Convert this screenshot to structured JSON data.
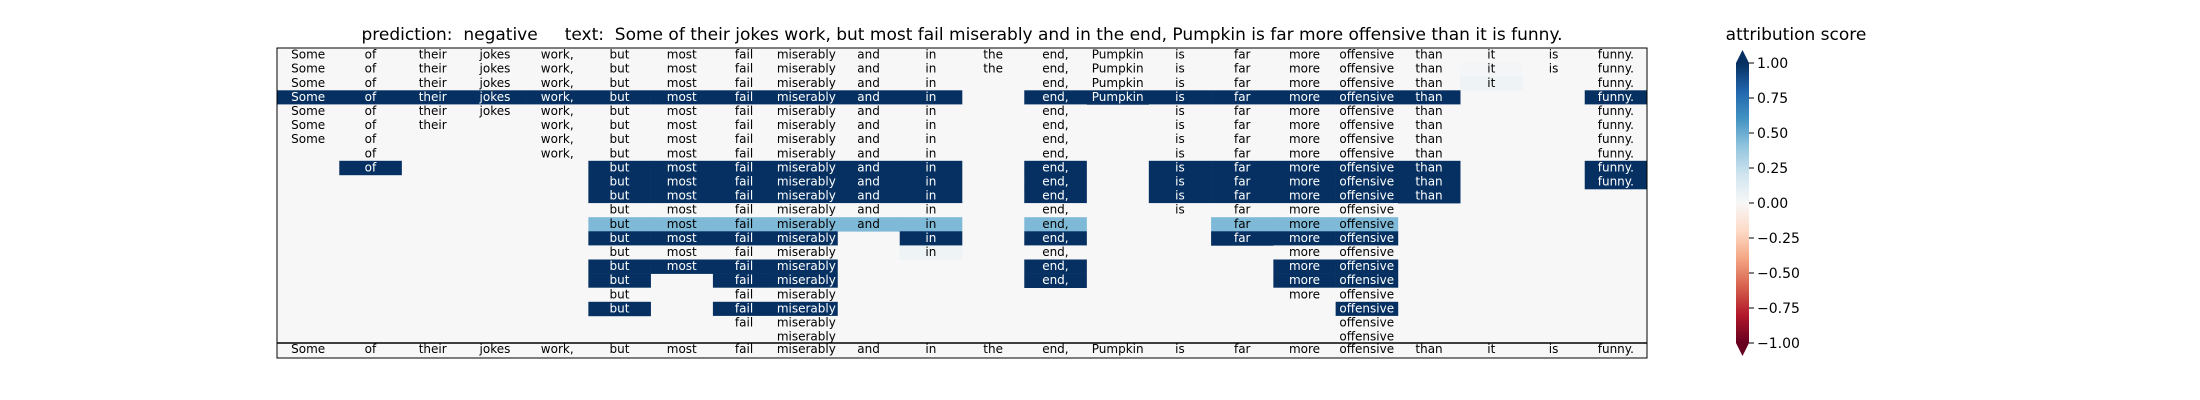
{
  "chart_data": {
    "type": "heatmap",
    "title": "prediction:  negative     text:  Some of their jokes work, but most fail miserably and in the end, Pumpkin is far more offensive than it is funny.",
    "tokens": [
      "Some",
      "of",
      "their",
      "jokes",
      "work,",
      "but",
      "most",
      "fail",
      "miserably",
      "and",
      "in",
      "the",
      "end,",
      "Pumpkin",
      "is",
      "far",
      "more",
      "offensive",
      "than",
      "it",
      "is",
      "funny."
    ],
    "rows": [
      [
        0,
        0,
        0,
        0,
        0,
        0,
        0,
        0,
        0,
        0,
        0,
        0,
        0,
        0,
        0,
        0,
        0,
        0,
        0,
        0,
        0,
        0
      ],
      [
        0,
        0,
        0,
        0,
        0,
        0,
        0,
        0,
        0,
        0,
        0,
        0,
        0,
        0,
        0,
        0,
        0,
        0,
        0,
        0.02,
        0,
        0
      ],
      [
        0,
        0,
        0,
        0,
        0,
        0,
        0,
        0,
        0,
        0,
        0,
        null,
        0,
        0,
        0,
        0,
        0,
        0,
        0,
        0.05,
        null,
        0
      ],
      [
        1,
        1,
        1,
        1,
        1,
        1,
        1,
        1,
        1,
        1,
        1,
        null,
        1,
        1,
        1,
        1,
        1,
        1,
        1,
        null,
        null,
        1
      ],
      [
        0,
        0,
        0,
        0,
        0,
        0,
        0,
        0,
        0,
        0,
        0,
        null,
        0,
        null,
        0,
        0,
        0,
        0,
        0,
        null,
        null,
        0
      ],
      [
        0,
        0,
        0,
        null,
        0,
        0,
        0,
        0,
        0,
        0,
        0,
        null,
        0,
        null,
        0,
        0,
        0,
        0,
        0,
        null,
        null,
        0
      ],
      [
        0,
        0,
        null,
        null,
        0,
        0,
        0,
        0,
        0,
        0,
        0,
        null,
        0,
        null,
        0,
        0,
        0,
        0,
        0,
        null,
        null,
        0
      ],
      [
        null,
        0,
        null,
        null,
        0,
        0,
        0,
        0,
        0,
        0,
        0,
        null,
        0,
        null,
        0,
        0,
        0,
        0,
        0,
        null,
        null,
        0
      ],
      [
        null,
        1,
        null,
        null,
        null,
        1,
        1,
        1,
        1,
        1,
        1,
        null,
        1,
        null,
        1,
        1,
        1,
        1,
        1,
        null,
        null,
        1
      ],
      [
        null,
        null,
        null,
        null,
        null,
        1,
        1,
        1,
        1,
        1,
        1,
        null,
        1,
        null,
        1,
        1,
        1,
        1,
        1,
        null,
        null,
        1
      ],
      [
        null,
        null,
        null,
        null,
        null,
        1,
        1,
        1,
        1,
        1,
        1,
        null,
        1,
        null,
        1,
        1,
        1,
        1,
        1,
        null,
        null,
        null
      ],
      [
        null,
        null,
        null,
        null,
        null,
        0,
        0,
        0,
        0,
        0,
        0,
        null,
        0,
        null,
        0,
        0,
        0,
        0,
        null,
        null,
        null,
        null
      ],
      [
        null,
        null,
        null,
        null,
        null,
        0.45,
        0.45,
        0.45,
        0.45,
        0.45,
        0.45,
        null,
        0.45,
        null,
        null,
        0.45,
        0.45,
        0.45,
        null,
        null,
        null,
        null
      ],
      [
        null,
        null,
        null,
        null,
        null,
        1,
        1,
        1,
        1,
        null,
        1,
        null,
        1,
        null,
        null,
        1,
        1,
        1,
        null,
        null,
        null,
        null
      ],
      [
        null,
        null,
        null,
        null,
        null,
        0,
        0,
        0,
        0,
        null,
        0.05,
        null,
        0,
        null,
        null,
        null,
        0,
        0,
        null,
        null,
        null,
        null
      ],
      [
        null,
        null,
        null,
        null,
        null,
        1,
        1,
        1,
        1,
        null,
        null,
        null,
        1,
        null,
        null,
        null,
        1,
        1,
        null,
        null,
        null,
        null
      ],
      [
        null,
        null,
        null,
        null,
        null,
        1,
        null,
        1,
        1,
        null,
        null,
        null,
        1,
        null,
        null,
        null,
        1,
        1,
        null,
        null,
        null,
        null
      ],
      [
        null,
        null,
        null,
        null,
        null,
        0,
        null,
        0,
        0,
        null,
        null,
        null,
        null,
        null,
        null,
        null,
        0,
        0,
        null,
        null,
        null,
        null
      ],
      [
        null,
        null,
        null,
        null,
        null,
        1,
        null,
        1,
        1,
        null,
        null,
        null,
        null,
        null,
        null,
        null,
        null,
        1,
        null,
        null,
        null,
        null
      ],
      [
        null,
        null,
        null,
        null,
        null,
        null,
        null,
        0,
        0,
        null,
        null,
        null,
        null,
        null,
        null,
        null,
        null,
        0,
        null,
        null,
        null,
        null
      ],
      [
        null,
        null,
        null,
        null,
        null,
        null,
        null,
        null,
        0,
        null,
        null,
        null,
        null,
        null,
        null,
        null,
        null,
        0,
        null,
        null,
        null,
        null
      ]
    ],
    "colorbar": {
      "label": "attribution score",
      "range": [
        -1,
        1
      ],
      "ticks": [
        "1.00",
        "0.75",
        "0.50",
        "0.25",
        "0.00",
        "−0.25",
        "−0.50",
        "−0.75",
        "−1.00"
      ],
      "colors": [
        "#67001f",
        "#b2182b",
        "#d6604d",
        "#f4a582",
        "#fddbc7",
        "#f7f7f7",
        "#d1e5f0",
        "#92c5de",
        "#4393c3",
        "#2166ac",
        "#053061"
      ]
    }
  }
}
